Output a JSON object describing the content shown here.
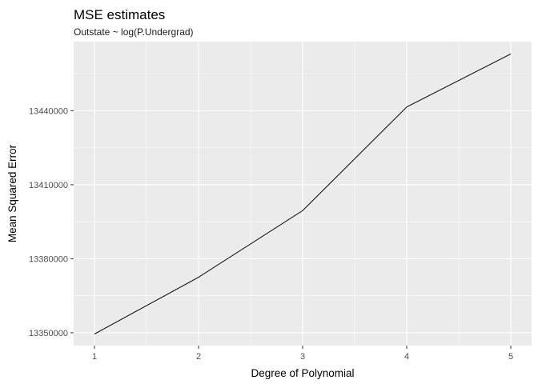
{
  "chart_data": {
    "type": "line",
    "title": "MSE estimates",
    "subtitle": "Outstate ~ log(P.Undergrad)",
    "xlabel": "Degree of Polynomial",
    "ylabel": "Mean Squared Error",
    "x": [
      1,
      2,
      3,
      4,
      5
    ],
    "series": [
      {
        "values": [
          13349500,
          13372500,
          13399500,
          13441500,
          13463000
        ]
      }
    ],
    "xticks": [
      1,
      2,
      3,
      4,
      5
    ],
    "xtick_labels": [
      "1",
      "2",
      "3",
      "4",
      "5"
    ],
    "yticks": [
      13350000,
      13380000,
      13410000,
      13440000
    ],
    "ytick_labels": [
      "13350000",
      "13380000",
      "13410000",
      "13440000"
    ],
    "xlim": [
      0.8,
      5.2
    ],
    "ylim": [
      13344800,
      13468000
    ],
    "grid": true,
    "colors": {
      "panel": "#ebebeb",
      "grid": "#ffffff",
      "line": "#000000",
      "tick": "#333333"
    }
  }
}
